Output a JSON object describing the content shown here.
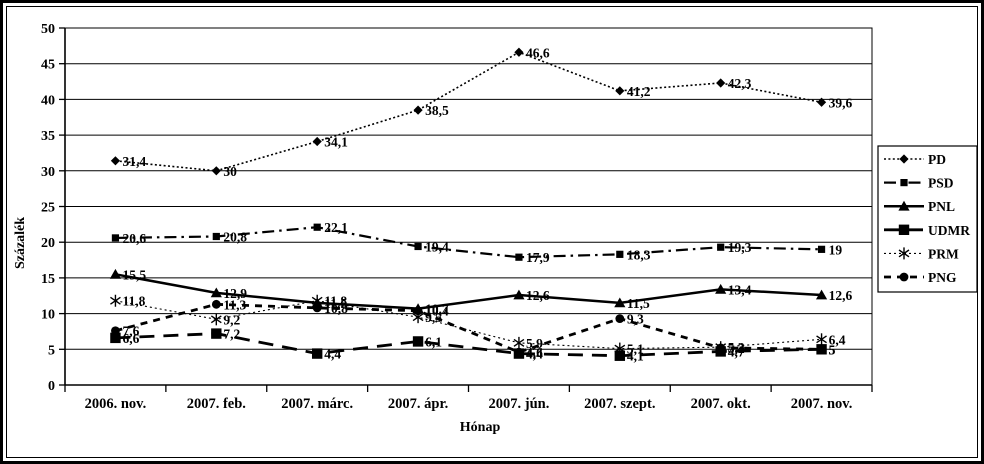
{
  "window": {
    "background": "#ffffff",
    "frame_color": "#000000"
  },
  "chart_data": {
    "type": "line",
    "title": "",
    "xlabel": "Hónap",
    "ylabel": "Százalék",
    "ylim": [
      0,
      50
    ],
    "ytick_step": 5,
    "grid": true,
    "legend_position": "right",
    "decimal_separator": ",",
    "foreground": "#000000",
    "background": "#ffffff",
    "categories": [
      "2006. nov.",
      "2007. feb.",
      "2007. márc.",
      "2007. ápr.",
      "2007. jún.",
      "2007. szept.",
      "2007. okt.",
      "2007. nov."
    ],
    "series": [
      {
        "name": "PD",
        "marker": "diamond",
        "line_style": "dotted-fine",
        "values": [
          31.4,
          30,
          34.1,
          38.5,
          46.6,
          41.2,
          42.3,
          39.6
        ]
      },
      {
        "name": "PSD",
        "marker": "square",
        "line_style": "dash-dot",
        "values": [
          20.6,
          20.8,
          22.1,
          19.4,
          17.9,
          18.3,
          19.3,
          19
        ]
      },
      {
        "name": "PNL",
        "marker": "triangle",
        "line_style": "solid",
        "values": [
          15.5,
          12.9,
          11.5,
          10.7,
          12.6,
          11.5,
          13.4,
          12.6
        ]
      },
      {
        "name": "UDMR",
        "marker": "square-large",
        "line_style": "long-dash",
        "values": [
          6.6,
          7.2,
          4.4,
          6.1,
          4.4,
          4.1,
          4.7,
          5
        ]
      },
      {
        "name": "PRM",
        "marker": "asterisk",
        "line_style": "dotted",
        "values": [
          11.8,
          9.2,
          11.8,
          9.5,
          5.9,
          5.1,
          5.3,
          6.4
        ]
      },
      {
        "name": "PNG",
        "marker": "circle",
        "line_style": "dash",
        "values": [
          7.6,
          11.3,
          10.8,
          10.4,
          4.6,
          9.3,
          5.2,
          5
        ]
      }
    ]
  }
}
